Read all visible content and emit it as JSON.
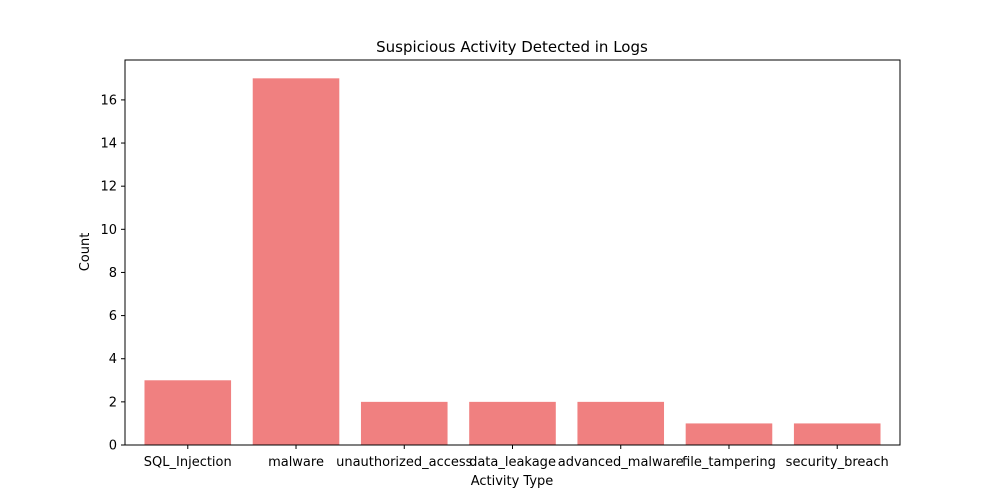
{
  "chart_data": {
    "type": "bar",
    "title": "Suspicious Activity Detected in Logs",
    "xlabel": "Activity Type",
    "ylabel": "Count",
    "categories": [
      "SQL_Injection",
      "malware",
      "unauthorized_access",
      "data_leakage",
      "advanced_malware",
      "file_tampering",
      "security_breach"
    ],
    "values": [
      3,
      17,
      2,
      2,
      2,
      1,
      1
    ],
    "ylim": [
      0,
      17.85
    ],
    "yticks": [
      0,
      2,
      4,
      6,
      8,
      10,
      12,
      14,
      16
    ],
    "grid": false,
    "legend": "none",
    "bar_color": "#f08080"
  }
}
